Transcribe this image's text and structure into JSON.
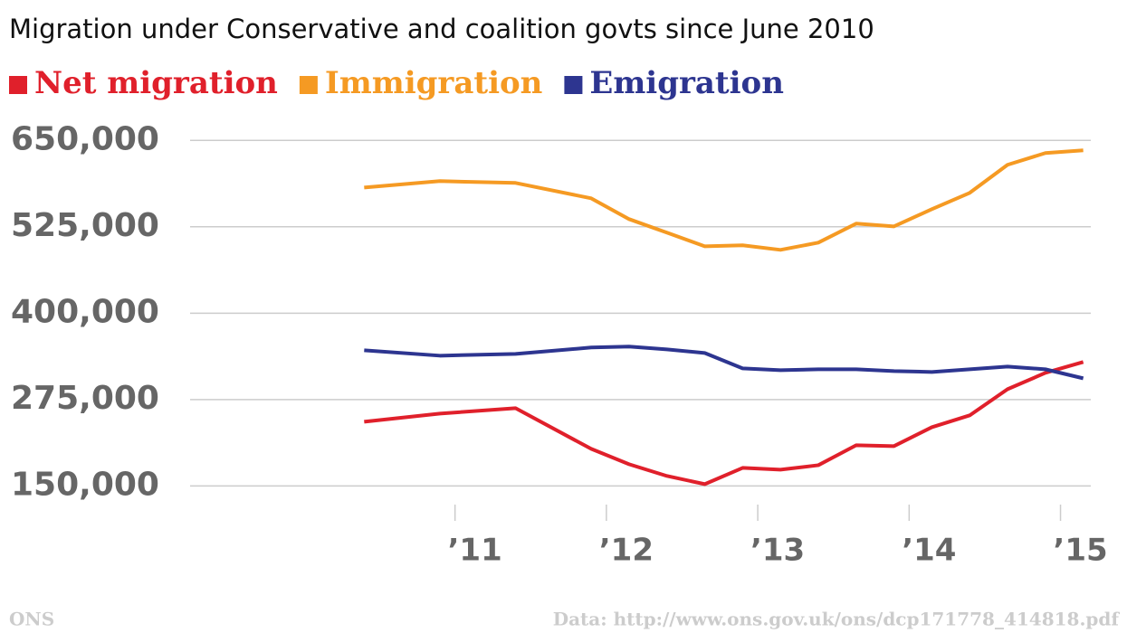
{
  "chart_data": {
    "type": "line",
    "title": "Migration under Conservative and coalition govts since June 2010",
    "source_left": "ONS",
    "source_right": "Data: http://www.ons.gov.uk/ons/dcp171778_414818.pdf",
    "x": [
      2010.4,
      2010.9,
      2011.4,
      2011.9,
      2012.15,
      2012.4,
      2012.65,
      2012.9,
      2013.15,
      2013.4,
      2013.65,
      2013.9,
      2014.15,
      2014.4,
      2014.65,
      2014.9,
      2015.15
    ],
    "series": [
      {
        "name": "Net migration",
        "color": "#e0202b",
        "values": [
          242900,
          254700,
          262500,
          203600,
          181400,
          164400,
          152600,
          176100,
          173500,
          180000,
          208900,
          207600,
          235000,
          252100,
          290000,
          313600,
          329300
        ]
      },
      {
        "name": "Immigration",
        "color": "#f59a23",
        "values": [
          581900,
          591100,
          588500,
          566200,
          536100,
          516500,
          496800,
          498200,
          491600,
          502100,
          529600,
          525600,
          550500,
          574100,
          614700,
          631700,
          635600
        ]
      },
      {
        "name": "Emigration",
        "color": "#2d3590",
        "values": [
          346300,
          338500,
          341100,
          350300,
          351600,
          347600,
          342400,
          320100,
          317500,
          318800,
          318800,
          316200,
          314900,
          318800,
          322700,
          318800,
          305700
        ]
      }
    ],
    "xlim": [
      2009.25,
      2015.2
    ],
    "xticks": [
      {
        "value": 2011,
        "label": "’11"
      },
      {
        "value": 2012,
        "label": "’12"
      },
      {
        "value": 2013,
        "label": "’13"
      },
      {
        "value": 2014,
        "label": "’14"
      },
      {
        "value": 2015,
        "label": "’15"
      }
    ],
    "ylim": [
      140000,
      670000
    ],
    "yticks": [
      {
        "value": 150000,
        "label": "150,000"
      },
      {
        "value": 275000,
        "label": "275,000"
      },
      {
        "value": 400000,
        "label": "400,000"
      },
      {
        "value": 525000,
        "label": "525,000"
      },
      {
        "value": 650000,
        "label": "650,000"
      }
    ],
    "grid": true
  }
}
